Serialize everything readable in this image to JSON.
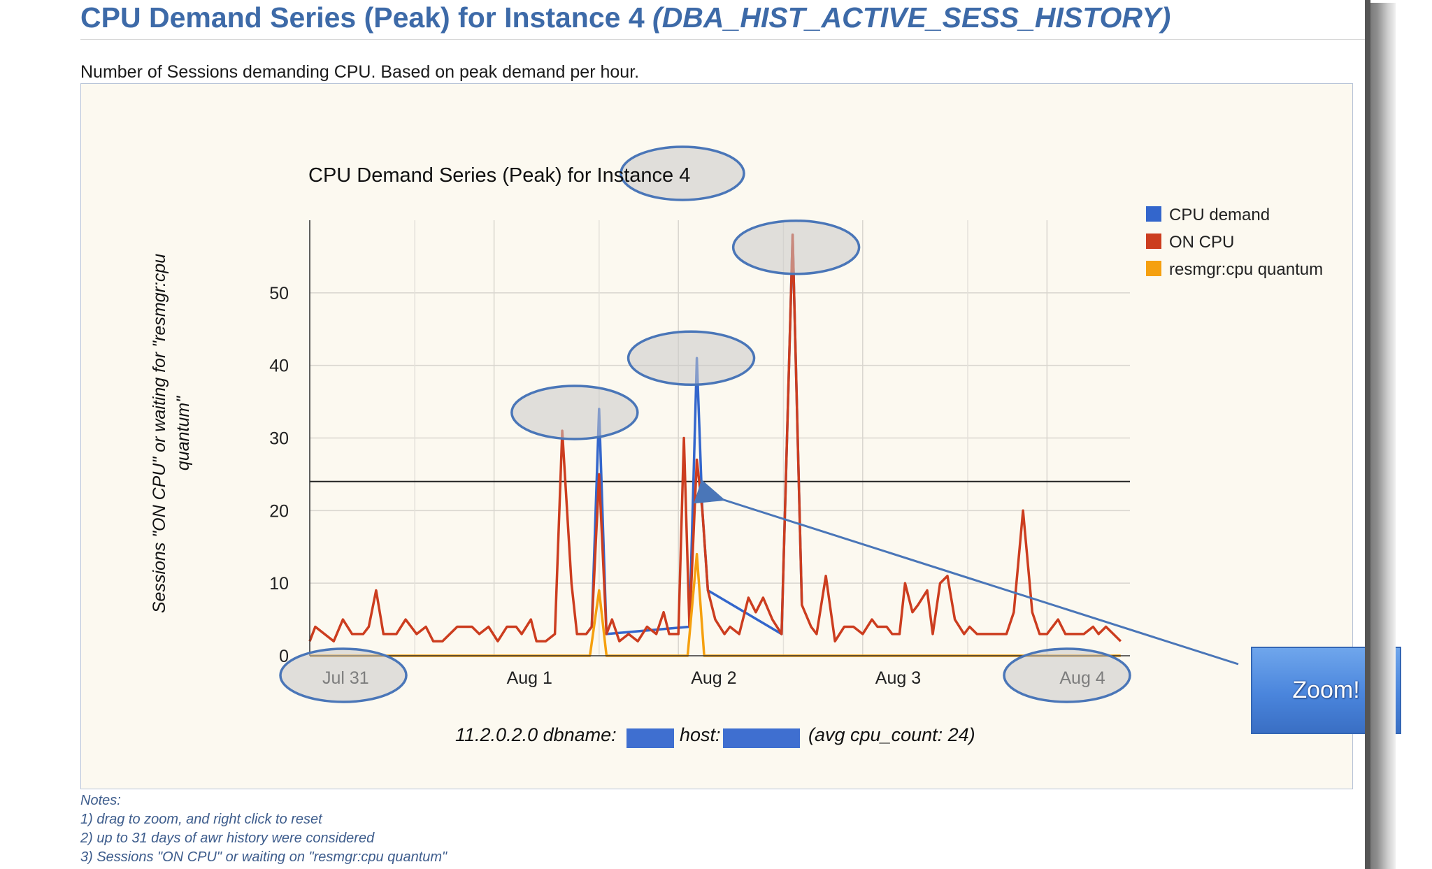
{
  "page": {
    "title": "CPU Demand Series (Peak) for Instance 4",
    "title_view": "(DBA_HIST_ACTIVE_SESS_HISTORY)",
    "subtitle": "Number of Sessions demanding CPU. Based on peak demand per hour."
  },
  "notes": [
    "Notes:",
    "1) drag to zoom, and right click to reset",
    "2) up to 31 days of awr history were considered",
    "3) Sessions \"ON CPU\" or waiting on \"resmgr:cpu quantum\""
  ],
  "zoom_callout": {
    "label": "Zoom!"
  },
  "colors": {
    "cpu_demand": "#3366cc",
    "on_cpu": "#cc3d1f",
    "resmgr": "#f5a00f",
    "annotation": "#4a76b8",
    "title": "#3d6aa8"
  },
  "chart_data": {
    "type": "line",
    "title_prefix": "CPU Demand Series (Peak) for",
    "title_instance": "Instance 4",
    "ylabel": "Sessions \"ON CPU\" or waiting for \"resmgr:cpu quantum\"",
    "xlabel": "11.2.0.2.0 dbname:",
    "xlabel_mid": "host:",
    "xlabel_tail": "(avg cpu_count: 24)",
    "x_unit": "days since Jul 31 00:00",
    "xlim": [
      0,
      4.45
    ],
    "ylim": [
      0,
      60
    ],
    "y_ticks": [
      0,
      10,
      20,
      30,
      40,
      50
    ],
    "x_ticks": [
      {
        "x": 0,
        "label": "Jul 31"
      },
      {
        "x": 1,
        "label": "Aug 1"
      },
      {
        "x": 2,
        "label": "Aug 2"
      },
      {
        "x": 3,
        "label": "Aug 3"
      },
      {
        "x": 4,
        "label": "Aug 4"
      }
    ],
    "reference_line": {
      "value": 24,
      "label": "avg cpu_count"
    },
    "legend": [
      "CPU demand",
      "ON CPU",
      "resmgr:cpu quantum"
    ],
    "legend_position": "right",
    "series": [
      {
        "name": "ON CPU",
        "points": [
          [
            0,
            2
          ],
          [
            0.03,
            4
          ],
          [
            0.08,
            3
          ],
          [
            0.13,
            2
          ],
          [
            0.18,
            5
          ],
          [
            0.23,
            3
          ],
          [
            0.29,
            3
          ],
          [
            0.32,
            4
          ],
          [
            0.36,
            9
          ],
          [
            0.4,
            3
          ],
          [
            0.47,
            3
          ],
          [
            0.52,
            5
          ],
          [
            0.58,
            3
          ],
          [
            0.63,
            4
          ],
          [
            0.67,
            2
          ],
          [
            0.72,
            2
          ],
          [
            0.8,
            4
          ],
          [
            0.88,
            4
          ],
          [
            0.92,
            3
          ],
          [
            0.97,
            4
          ],
          [
            1.02,
            2
          ],
          [
            1.07,
            4
          ],
          [
            1.12,
            4
          ],
          [
            1.15,
            3
          ],
          [
            1.2,
            5
          ],
          [
            1.23,
            2
          ],
          [
            1.28,
            2
          ],
          [
            1.33,
            3
          ],
          [
            1.37,
            31
          ],
          [
            1.42,
            10
          ],
          [
            1.45,
            3
          ],
          [
            1.5,
            3
          ],
          [
            1.53,
            4
          ],
          [
            1.57,
            25
          ],
          [
            1.61,
            3
          ],
          [
            1.64,
            5
          ],
          [
            1.68,
            2
          ],
          [
            1.73,
            3
          ],
          [
            1.78,
            2
          ],
          [
            1.83,
            4
          ],
          [
            1.88,
            3
          ],
          [
            1.92,
            6
          ],
          [
            1.95,
            3
          ],
          [
            2.0,
            3
          ],
          [
            2.03,
            30
          ],
          [
            2.06,
            4
          ],
          [
            2.1,
            27
          ],
          [
            2.13,
            20
          ],
          [
            2.16,
            9
          ],
          [
            2.2,
            5
          ],
          [
            2.25,
            3
          ],
          [
            2.28,
            4
          ],
          [
            2.33,
            3
          ],
          [
            2.38,
            8
          ],
          [
            2.42,
            6
          ],
          [
            2.46,
            8
          ],
          [
            2.51,
            5
          ],
          [
            2.56,
            3
          ],
          [
            2.62,
            58
          ],
          [
            2.67,
            7
          ],
          [
            2.72,
            4
          ],
          [
            2.75,
            3
          ],
          [
            2.8,
            11
          ],
          [
            2.85,
            2
          ],
          [
            2.9,
            4
          ],
          [
            2.95,
            4
          ],
          [
            3.0,
            3
          ],
          [
            3.05,
            5
          ],
          [
            3.08,
            4
          ],
          [
            3.13,
            4
          ],
          [
            3.16,
            3
          ],
          [
            3.2,
            3
          ],
          [
            3.23,
            10
          ],
          [
            3.27,
            6
          ],
          [
            3.3,
            7
          ],
          [
            3.35,
            9
          ],
          [
            3.38,
            3
          ],
          [
            3.42,
            10
          ],
          [
            3.46,
            11
          ],
          [
            3.5,
            5
          ],
          [
            3.55,
            3
          ],
          [
            3.58,
            4
          ],
          [
            3.62,
            3
          ],
          [
            3.68,
            3
          ],
          [
            3.73,
            3
          ],
          [
            3.78,
            3
          ],
          [
            3.82,
            6
          ],
          [
            3.87,
            20
          ],
          [
            3.92,
            6
          ],
          [
            3.96,
            3
          ],
          [
            4.0,
            3
          ],
          [
            4.06,
            5
          ],
          [
            4.1,
            3
          ],
          [
            4.15,
            3
          ],
          [
            4.2,
            3
          ],
          [
            4.25,
            4
          ],
          [
            4.28,
            3
          ],
          [
            4.32,
            4
          ],
          [
            4.36,
            3
          ],
          [
            4.4,
            2
          ]
        ]
      },
      {
        "name": "CPU demand",
        "points": [
          [
            1.5,
            3
          ],
          [
            1.53,
            4
          ],
          [
            1.57,
            34
          ],
          [
            1.61,
            3
          ],
          [
            2.06,
            4
          ],
          [
            2.1,
            41
          ],
          [
            2.13,
            20
          ],
          [
            2.16,
            9
          ],
          [
            2.56,
            3
          ],
          [
            2.62,
            58
          ],
          [
            2.67,
            7
          ]
        ]
      },
      {
        "name": "resmgr:cpu quantum",
        "points": [
          [
            0,
            0
          ],
          [
            1.52,
            0
          ],
          [
            1.57,
            9
          ],
          [
            1.61,
            0
          ],
          [
            2.05,
            0
          ],
          [
            2.1,
            14
          ],
          [
            2.14,
            0
          ],
          [
            4.4,
            0
          ]
        ]
      }
    ],
    "highlights": [
      "Instance 4",
      "Jul 31",
      "Aug 4",
      "peak 34",
      "peak 41",
      "peak 58"
    ]
  }
}
